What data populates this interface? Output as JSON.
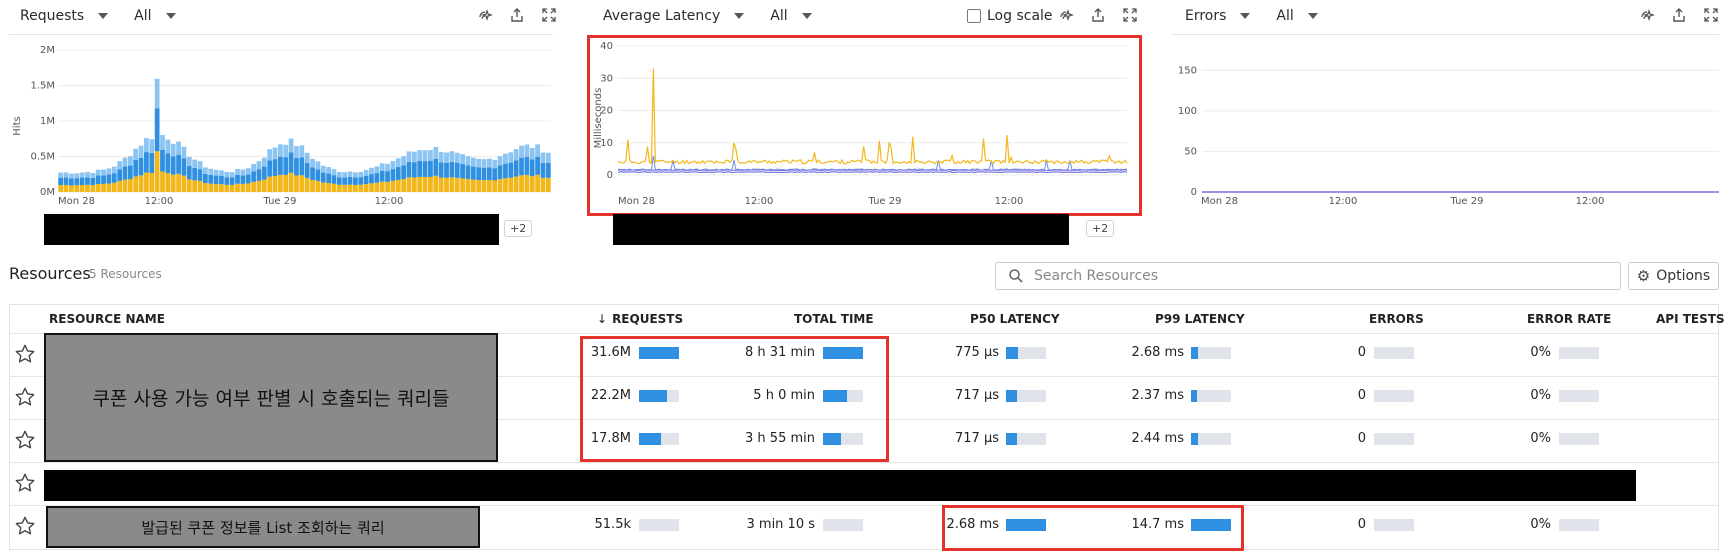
{
  "panels": [
    {
      "metric": "Requests",
      "filter": "All",
      "y_label": "Hits",
      "y_ticks": [
        "2M",
        "1.5M",
        "1M",
        "0.5M",
        "0M"
      ],
      "x_ticks": [
        "Mon 28",
        "12:00",
        "Tue 29",
        "12:00"
      ],
      "legend_more": "+2"
    },
    {
      "metric": "Average Latency",
      "filter": "All",
      "log_scale_label": "Log scale",
      "y_label": "Milliseconds",
      "y_ticks": [
        "40",
        "30",
        "20",
        "10",
        "0"
      ],
      "x_ticks": [
        "Mon 28",
        "12:00",
        "Tue 29",
        "12:00"
      ],
      "legend_more": "+2"
    },
    {
      "metric": "Errors",
      "filter": "All",
      "y_ticks": [
        "150",
        "100",
        "50",
        "0"
      ],
      "x_ticks": [
        "Mon 28",
        "12:00",
        "Tue 29",
        "12:00"
      ]
    }
  ],
  "resources": {
    "title": "Resources",
    "count": "5 Resources",
    "search_placeholder": "Search Resources",
    "options_label": "Options",
    "columns": [
      "RESOURCE NAME",
      "REQUESTS",
      "TOTAL TIME",
      "P50 LATENCY",
      "P99 LATENCY",
      "ERRORS",
      "ERROR RATE",
      "API TESTS"
    ],
    "group_label": "쿠폰 사용 가능 여부 판별 시 호출되는 쿼리들",
    "last_label": "발급된 쿠폰 정보를 List 조회하는 쿼리",
    "rows": [
      {
        "requests": "31.6M",
        "req_fill": 1.0,
        "total_time": "8 h 31 min",
        "tt_fill": 1.0,
        "p50": "775 µs",
        "p50_fill": 0.29,
        "p99": "2.68 ms",
        "p99_fill": 0.18,
        "errors": "0",
        "error_rate": "0%"
      },
      {
        "requests": "22.2M",
        "req_fill": 0.7,
        "total_time": "5 h 0 min",
        "tt_fill": 0.59,
        "p50": "717 µs",
        "p50_fill": 0.27,
        "p99": "2.37 ms",
        "p99_fill": 0.16,
        "errors": "0",
        "error_rate": "0%"
      },
      {
        "requests": "17.8M",
        "req_fill": 0.56,
        "total_time": "3 h 55 min",
        "tt_fill": 0.46,
        "p50": "717 µs",
        "p50_fill": 0.27,
        "p99": "2.44 ms",
        "p99_fill": 0.17,
        "errors": "0",
        "error_rate": "0%"
      },
      {
        "requests": "",
        "total_time": "",
        "p50": "",
        "p99": "",
        "errors": "",
        "error_rate": ""
      },
      {
        "requests": "51.5k",
        "req_fill": 0.0,
        "total_time": "3 min 10 s",
        "tt_fill": 0.0,
        "p50": "2.68 ms",
        "p50_fill": 1.0,
        "p99": "14.7 ms",
        "p99_fill": 1.0,
        "errors": "0",
        "error_rate": "0%"
      }
    ]
  },
  "colors": {
    "accent": "#2f8fe0",
    "yellow": "#f2b81b",
    "lightblue": "#8cc4f2",
    "purple": "#7b6fe0",
    "highlight": "#e5322d"
  },
  "chart_data": [
    {
      "type": "bar",
      "stacked": true,
      "title": "Requests",
      "ylabel": "Hits",
      "ylim": [
        0,
        2000000
      ],
      "x_ticks": [
        "Mon 28",
        "12:00",
        "Tue 29",
        "12:00"
      ],
      "pattern": "two daily peaks (~1.6M max near Mon 28 12:00, ~1.25M, ~1.1M)"
    },
    {
      "type": "line",
      "title": "Average Latency",
      "ylabel": "Milliseconds",
      "ylim": [
        0,
        40
      ],
      "x_ticks": [
        "Mon 28",
        "12:00",
        "Tue 29",
        "12:00"
      ],
      "pattern": "yellow series ~3-5 ms with spike ~33 ms near start; purple/blue series ~1-2 ms"
    },
    {
      "type": "line",
      "title": "Errors",
      "ylim": [
        0,
        175
      ],
      "x_ticks": [
        "Mon 28",
        "12:00",
        "Tue 29",
        "12:00"
      ],
      "series": [
        {
          "values": [
            0
          ]
        }
      ]
    }
  ]
}
